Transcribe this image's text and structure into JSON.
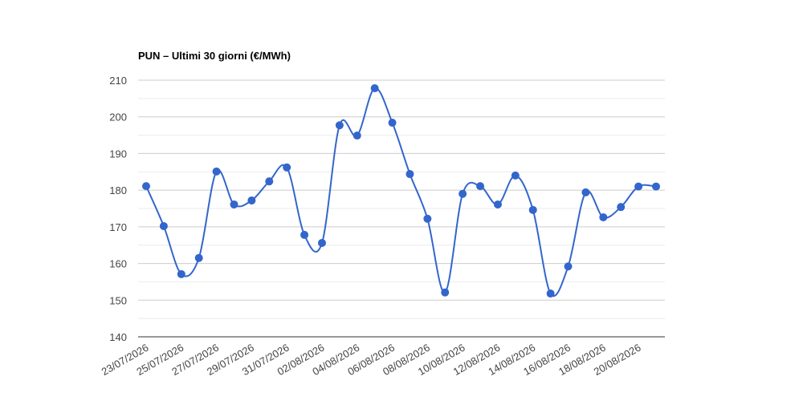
{
  "chart_data": {
    "type": "line",
    "title": "PUN – Ultimi 30 giorni (€/MWh)",
    "categories": [
      "23/07/2026",
      null,
      "25/07/2026",
      null,
      "27/07/2026",
      null,
      "29/07/2026",
      null,
      "31/07/2026",
      null,
      "02/08/2026",
      null,
      "04/08/2026",
      null,
      "06/08/2026",
      null,
      "08/08/2026",
      null,
      "10/08/2026",
      null,
      "12/08/2026",
      null,
      "14/08/2026",
      null,
      "16/08/2026",
      null,
      "18/08/2026",
      null,
      "20/08/2026",
      null
    ],
    "values": [
      181.1,
      170.2,
      157.1,
      161.5,
      185.1,
      176.1,
      177.2,
      182.4,
      186.2,
      167.8,
      165.6,
      197.7,
      194.9,
      207.8,
      198.4,
      184.4,
      172.2,
      152.1,
      179.0,
      181.1,
      176.1,
      184.0,
      174.6,
      151.8,
      159.2,
      179.4,
      172.6,
      175.4,
      181.0,
      181.0
    ],
    "color": "#3366cc",
    "ylim": [
      140,
      210
    ],
    "yticks": [
      140,
      150,
      160,
      170,
      180,
      190,
      200,
      210
    ],
    "minor_yticks": [
      145,
      155,
      165,
      175,
      185,
      195,
      205
    ],
    "grid": true,
    "smooth": true
  }
}
